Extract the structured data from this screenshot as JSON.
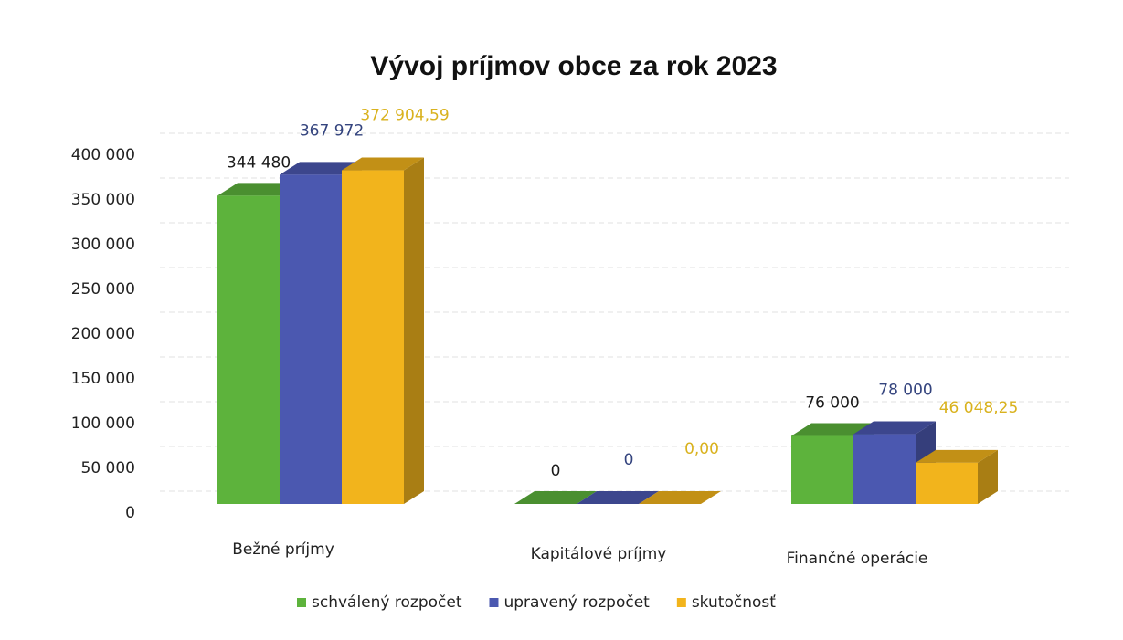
{
  "chart_data": {
    "type": "bar3d",
    "title": "Vývoj príjmov obce za rok 2023",
    "categories": [
      "Bežné príjmy",
      "Kapitálové príjmy",
      "Finančné operácie"
    ],
    "series": [
      {
        "name": "schválený rozpočet",
        "color": "#5db33c",
        "label_color": "#1a1a1a",
        "values": [
          344480,
          0,
          76000
        ],
        "value_labels": [
          "344 480",
          "0",
          "76 000"
        ]
      },
      {
        "name": "upravený rozpočet",
        "color": "#4b58b0",
        "label_color": "#34447e",
        "values": [
          367972,
          0,
          78000
        ],
        "value_labels": [
          "367 972",
          "0",
          "78 000"
        ]
      },
      {
        "name": "skutočnosť",
        "color": "#f2b41c",
        "label_color": "#d9b21e",
        "values": [
          372904.59,
          0,
          46048.25
        ],
        "value_labels": [
          "372 904,59",
          "0,00",
          "46 048,25"
        ]
      }
    ],
    "ylim": [
      0,
      400000
    ],
    "yticks": [
      0,
      {
        "value": 50000,
        "label": "50 000"
      },
      {
        "value": 100000,
        "label": "100 000"
      },
      {
        "value": 150000,
        "label": "150 000"
      },
      {
        "value": 200000,
        "label": "200 000"
      },
      {
        "value": 250000,
        "label": "250 000"
      },
      {
        "value": 300000,
        "label": "300 000"
      },
      {
        "value": 350000,
        "label": "350 000"
      },
      {
        "value": 400000,
        "label": "400 000"
      }
    ],
    "grid": true,
    "legend": "bottom"
  }
}
